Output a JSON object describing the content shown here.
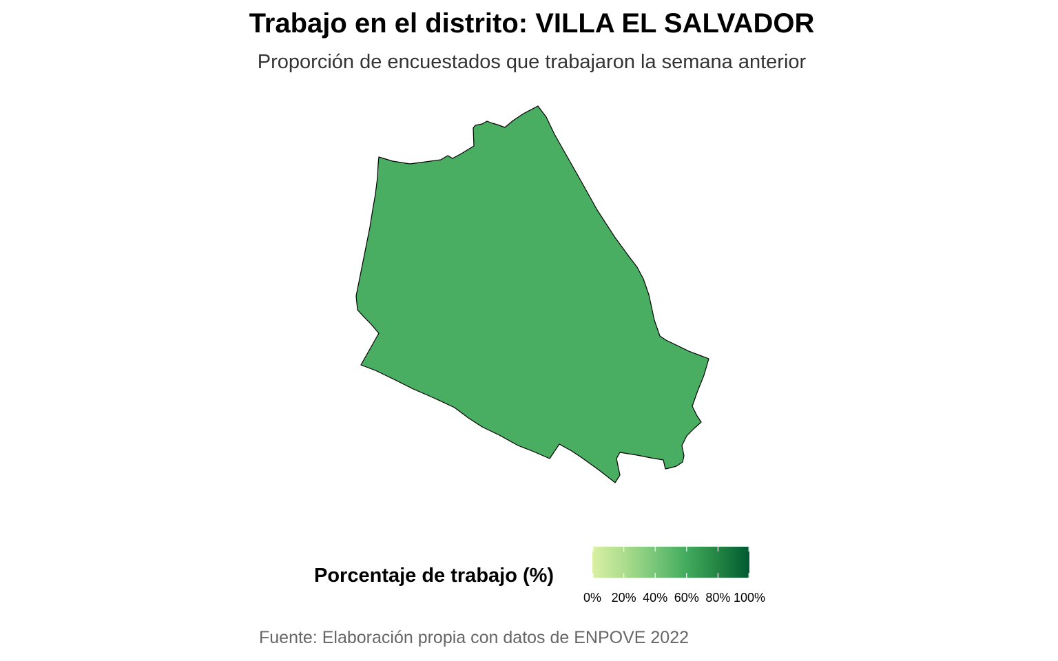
{
  "title": "Trabajo en el distrito: VILLA EL SALVADOR",
  "subtitle": "Proporción de encuestados que trabajaron la semana anterior",
  "map": {
    "district": "VILLA EL SALVADOR",
    "value_percent": 64,
    "fill_color": "#4aae62",
    "border_color": "#000000"
  },
  "legend": {
    "title": "Porcentaje de trabajo (%)",
    "range": [
      0,
      100
    ],
    "colors": [
      "#d9f0a3",
      "#addd8e",
      "#78c679",
      "#41ab5d",
      "#238443",
      "#005a32"
    ],
    "ticks": [
      {
        "value": 0,
        "label": "0%"
      },
      {
        "value": 20,
        "label": "20%"
      },
      {
        "value": 40,
        "label": "40%"
      },
      {
        "value": 60,
        "label": "60%"
      },
      {
        "value": 80,
        "label": "80%"
      },
      {
        "value": 100,
        "label": "100%"
      }
    ]
  },
  "caption": "Fuente: Elaboración propia con datos de ENPOVE 2022"
}
